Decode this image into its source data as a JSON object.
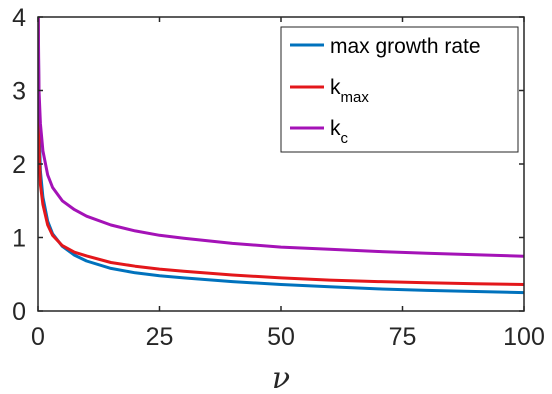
{
  "chart_data": {
    "type": "line",
    "title": "",
    "xlabel": "ν",
    "ylabel": "",
    "xlim": [
      0,
      100
    ],
    "ylim": [
      0,
      4
    ],
    "xticks": [
      "0",
      "25",
      "50",
      "75",
      "100"
    ],
    "yticks": [
      "0",
      "1",
      "2",
      "3",
      "4"
    ],
    "grid": false,
    "legend_position": "top-right",
    "x": [
      0.05,
      0.2,
      0.5,
      1,
      2,
      3,
      5,
      7.5,
      10,
      15,
      20,
      25,
      30,
      40,
      50,
      60,
      70,
      80,
      90,
      100
    ],
    "series": [
      {
        "name_main": "max growth rate",
        "name_sub": "",
        "color": "#0072BD",
        "values": [
          4.0,
          2.55,
          1.9,
          1.55,
          1.22,
          1.05,
          0.88,
          0.76,
          0.68,
          0.58,
          0.52,
          0.48,
          0.45,
          0.4,
          0.36,
          0.33,
          0.3,
          0.28,
          0.265,
          0.25
        ]
      },
      {
        "name_main": "k",
        "name_sub": "max",
        "color": "#E3171B",
        "values": [
          4.0,
          2.25,
          1.72,
          1.45,
          1.17,
          1.03,
          0.89,
          0.8,
          0.75,
          0.66,
          0.61,
          0.57,
          0.54,
          0.49,
          0.45,
          0.42,
          0.4,
          0.385,
          0.37,
          0.36
        ]
      },
      {
        "name_main": "k",
        "name_sub": "c",
        "color": "#A412B7",
        "values": [
          4.0,
          3.0,
          2.55,
          2.18,
          1.85,
          1.68,
          1.5,
          1.38,
          1.29,
          1.17,
          1.09,
          1.03,
          0.99,
          0.92,
          0.87,
          0.84,
          0.81,
          0.785,
          0.765,
          0.745
        ]
      }
    ]
  }
}
